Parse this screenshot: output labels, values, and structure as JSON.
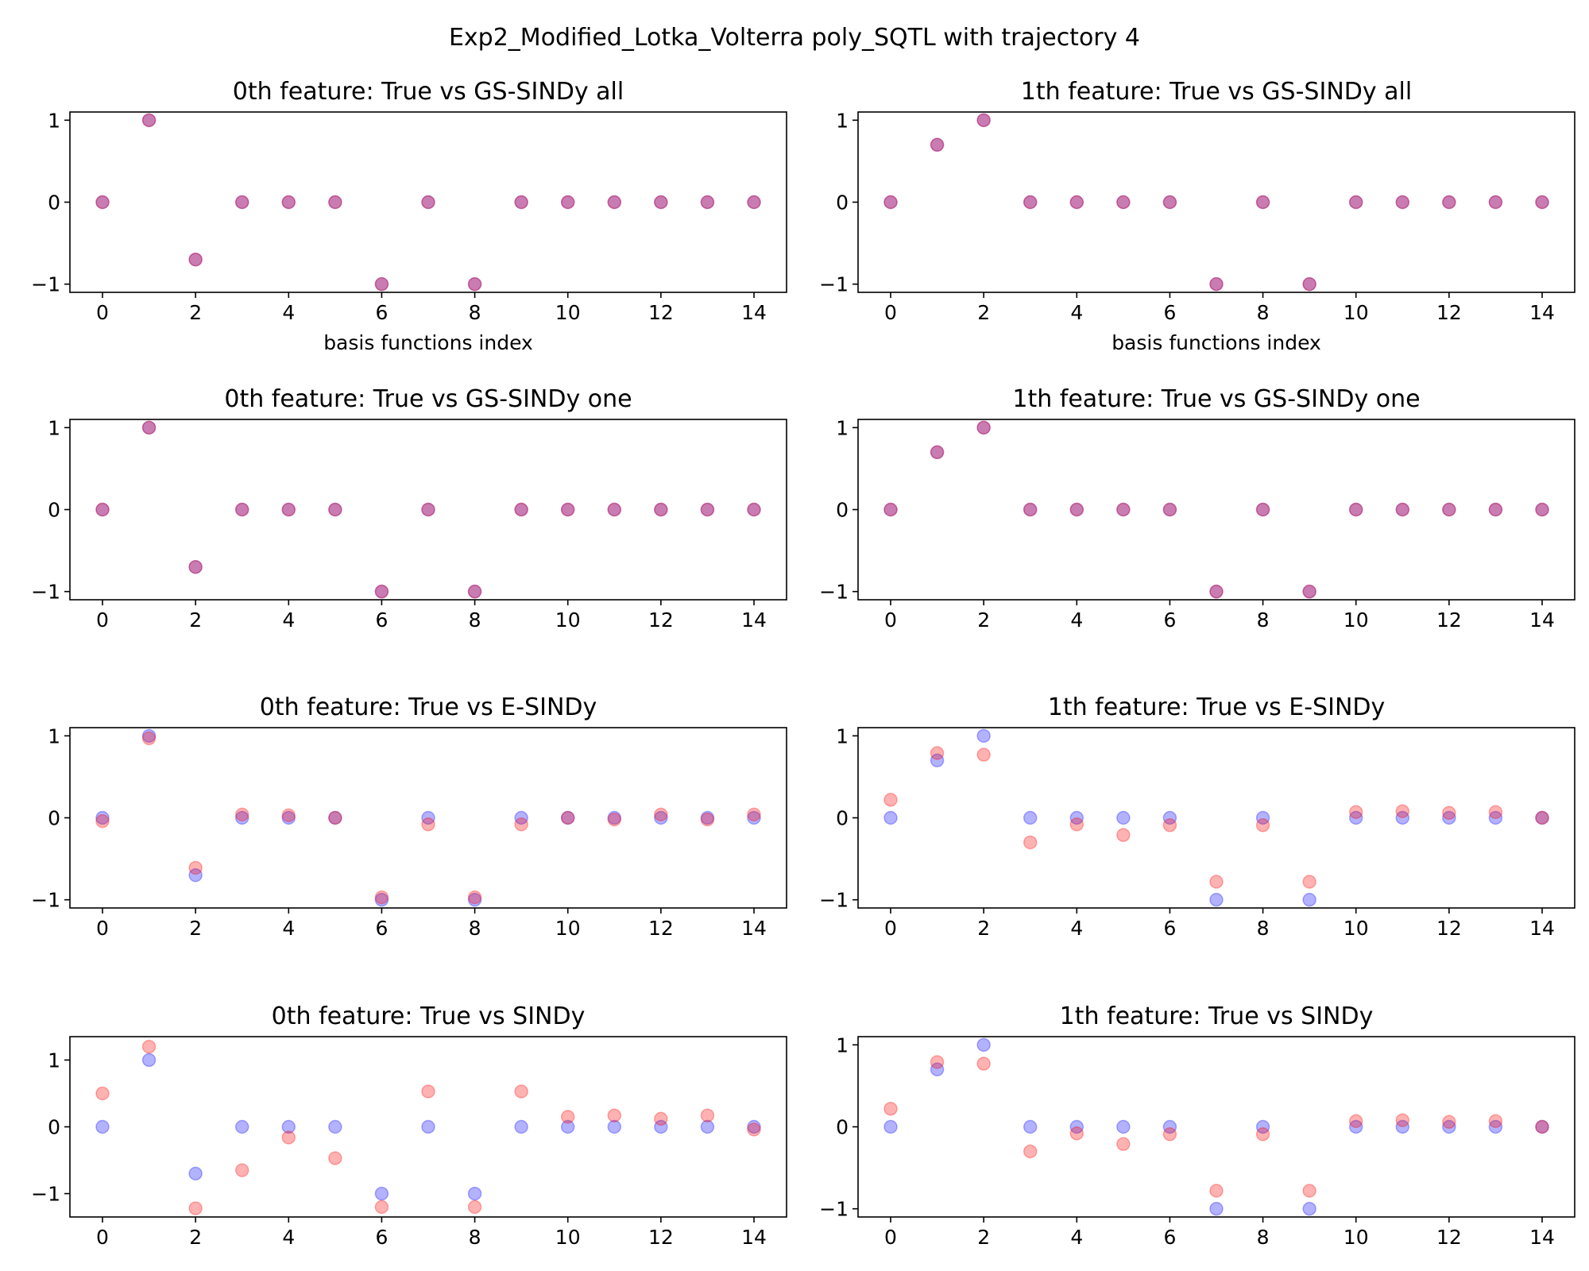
{
  "figure": {
    "suptitle": "Exp2_Modified_Lotka_Volterra poly_SQTL with trajectory 4",
    "true_color": "#0000ff",
    "est_color": "#ff0000",
    "marker_alpha": 0.3
  },
  "chart_data": [
    {
      "type": "scatter",
      "title": "0th feature: True vs GS-SINDy all",
      "xlabel": "basis functions index",
      "ylabel": "",
      "xticks": [
        0,
        2,
        4,
        6,
        8,
        10,
        12,
        14
      ],
      "yticks": [
        -1,
        0,
        1
      ],
      "xlim": [
        -0.7,
        14.7
      ],
      "ylim": [
        -1.1,
        1.1
      ],
      "series": [
        {
          "color": "#0000ff",
          "x": [
            0,
            1,
            2,
            3,
            4,
            5,
            6,
            7,
            8,
            9,
            10,
            11,
            12,
            13,
            14
          ],
          "y": [
            0,
            1,
            -0.7,
            0,
            0,
            0,
            -1,
            0,
            -1,
            0,
            0,
            0,
            0,
            0,
            0
          ]
        },
        {
          "color": "#ff0000",
          "x": [
            0,
            1,
            2,
            3,
            4,
            5,
            6,
            7,
            8,
            9,
            10,
            11,
            12,
            13,
            14
          ],
          "y": [
            0,
            1,
            -0.7,
            0,
            0,
            0,
            -1,
            0,
            -1,
            0,
            0,
            0,
            0,
            0,
            0
          ]
        }
      ]
    },
    {
      "type": "scatter",
      "title": "1th feature: True vs GS-SINDy all",
      "xlabel": "basis functions index",
      "ylabel": "",
      "xticks": [
        0,
        2,
        4,
        6,
        8,
        10,
        12,
        14
      ],
      "yticks": [
        -1,
        0,
        1
      ],
      "xlim": [
        -0.7,
        14.7
      ],
      "ylim": [
        -1.1,
        1.1
      ],
      "series": [
        {
          "color": "#0000ff",
          "x": [
            0,
            1,
            2,
            3,
            4,
            5,
            6,
            7,
            8,
            9,
            10,
            11,
            12,
            13,
            14
          ],
          "y": [
            0,
            0.7,
            1,
            0,
            0,
            0,
            0,
            -1,
            0,
            -1,
            0,
            0,
            0,
            0,
            0
          ]
        },
        {
          "color": "#ff0000",
          "x": [
            0,
            1,
            2,
            3,
            4,
            5,
            6,
            7,
            8,
            9,
            10,
            11,
            12,
            13,
            14
          ],
          "y": [
            0,
            0.7,
            1,
            0,
            0,
            0,
            0,
            -1,
            0,
            -1,
            0,
            0,
            0,
            0,
            0
          ]
        }
      ]
    },
    {
      "type": "scatter",
      "title": "0th feature: True vs GS-SINDy one",
      "xlabel": "",
      "ylabel": "",
      "xticks": [
        0,
        2,
        4,
        6,
        8,
        10,
        12,
        14
      ],
      "yticks": [
        -1,
        0,
        1
      ],
      "xlim": [
        -0.7,
        14.7
      ],
      "ylim": [
        -1.1,
        1.1
      ],
      "series": [
        {
          "color": "#0000ff",
          "x": [
            0,
            1,
            2,
            3,
            4,
            5,
            6,
            7,
            8,
            9,
            10,
            11,
            12,
            13,
            14
          ],
          "y": [
            0,
            1,
            -0.7,
            0,
            0,
            0,
            -1,
            0,
            -1,
            0,
            0,
            0,
            0,
            0,
            0
          ]
        },
        {
          "color": "#ff0000",
          "x": [
            0,
            1,
            2,
            3,
            4,
            5,
            6,
            7,
            8,
            9,
            10,
            11,
            12,
            13,
            14
          ],
          "y": [
            0,
            1,
            -0.7,
            0,
            0,
            0,
            -1,
            0,
            -1,
            0,
            0,
            0,
            0,
            0,
            0
          ]
        }
      ]
    },
    {
      "type": "scatter",
      "title": "1th feature: True vs GS-SINDy one",
      "xlabel": "",
      "ylabel": "",
      "xticks": [
        0,
        2,
        4,
        6,
        8,
        10,
        12,
        14
      ],
      "yticks": [
        -1,
        0,
        1
      ],
      "xlim": [
        -0.7,
        14.7
      ],
      "ylim": [
        -1.1,
        1.1
      ],
      "series": [
        {
          "color": "#0000ff",
          "x": [
            0,
            1,
            2,
            3,
            4,
            5,
            6,
            7,
            8,
            9,
            10,
            11,
            12,
            13,
            14
          ],
          "y": [
            0,
            0.7,
            1,
            0,
            0,
            0,
            0,
            -1,
            0,
            -1,
            0,
            0,
            0,
            0,
            0
          ]
        },
        {
          "color": "#ff0000",
          "x": [
            0,
            1,
            2,
            3,
            4,
            5,
            6,
            7,
            8,
            9,
            10,
            11,
            12,
            13,
            14
          ],
          "y": [
            0,
            0.7,
            1,
            0,
            0,
            0,
            0,
            -1,
            0,
            -1,
            0,
            0,
            0,
            0,
            0
          ]
        }
      ]
    },
    {
      "type": "scatter",
      "title": "0th feature: True vs E-SINDy",
      "xlabel": "",
      "ylabel": "",
      "xticks": [
        0,
        2,
        4,
        6,
        8,
        10,
        12,
        14
      ],
      "yticks": [
        -1,
        0,
        1
      ],
      "xlim": [
        -0.7,
        14.7
      ],
      "ylim": [
        -1.1,
        1.1
      ],
      "series": [
        {
          "color": "#0000ff",
          "x": [
            0,
            1,
            2,
            3,
            4,
            5,
            6,
            7,
            8,
            9,
            10,
            11,
            12,
            13,
            14
          ],
          "y": [
            0,
            1,
            -0.7,
            0,
            0,
            0,
            -1,
            0,
            -1,
            0,
            0,
            0,
            0,
            0,
            0
          ]
        },
        {
          "color": "#ff0000",
          "x": [
            0,
            1,
            2,
            3,
            4,
            5,
            6,
            7,
            8,
            9,
            10,
            11,
            12,
            13,
            14
          ],
          "y": [
            -0.04,
            0.97,
            -0.61,
            0.04,
            0.03,
            0,
            -0.97,
            -0.08,
            -0.97,
            -0.08,
            0,
            -0.02,
            0.04,
            -0.02,
            0.04
          ]
        }
      ]
    },
    {
      "type": "scatter",
      "title": "1th feature: True vs E-SINDy",
      "xlabel": "",
      "ylabel": "",
      "xticks": [
        0,
        2,
        4,
        6,
        8,
        10,
        12,
        14
      ],
      "yticks": [
        -1,
        0,
        1
      ],
      "xlim": [
        -0.7,
        14.7
      ],
      "ylim": [
        -1.1,
        1.1
      ],
      "series": [
        {
          "color": "#0000ff",
          "x": [
            0,
            1,
            2,
            3,
            4,
            5,
            6,
            7,
            8,
            9,
            10,
            11,
            12,
            13,
            14
          ],
          "y": [
            0,
            0.7,
            1,
            0,
            0,
            0,
            0,
            -1,
            0,
            -1,
            0,
            0,
            0,
            0,
            0
          ]
        },
        {
          "color": "#ff0000",
          "x": [
            0,
            1,
            2,
            3,
            4,
            5,
            6,
            7,
            8,
            9,
            10,
            11,
            12,
            13,
            14
          ],
          "y": [
            0.22,
            0.79,
            0.77,
            -0.3,
            -0.08,
            -0.21,
            -0.09,
            -0.78,
            -0.09,
            -0.78,
            0.07,
            0.08,
            0.06,
            0.07,
            0
          ]
        }
      ]
    },
    {
      "type": "scatter",
      "title": "0th feature: True vs SINDy",
      "xlabel": "",
      "ylabel": "",
      "xticks": [
        0,
        2,
        4,
        6,
        8,
        10,
        12,
        14
      ],
      "yticks": [
        -1,
        0,
        1
      ],
      "xlim": [
        -0.7,
        14.7
      ],
      "ylim": [
        -1.35,
        1.35
      ],
      "series": [
        {
          "color": "#0000ff",
          "x": [
            0,
            1,
            2,
            3,
            4,
            5,
            6,
            7,
            8,
            9,
            10,
            11,
            12,
            13,
            14
          ],
          "y": [
            0,
            1,
            -0.7,
            0,
            0,
            0,
            -1,
            0,
            -1,
            0,
            0,
            0,
            0,
            0,
            0
          ]
        },
        {
          "color": "#ff0000",
          "x": [
            0,
            1,
            2,
            3,
            4,
            5,
            6,
            7,
            8,
            9,
            10,
            11,
            12,
            13,
            14
          ],
          "y": [
            0.5,
            1.2,
            -1.22,
            -0.65,
            -0.16,
            -0.47,
            -1.2,
            0.53,
            -1.2,
            0.53,
            0.15,
            0.17,
            0.12,
            0.17,
            -0.04
          ]
        }
      ]
    },
    {
      "type": "scatter",
      "title": "1th feature: True vs SINDy",
      "xlabel": "",
      "ylabel": "",
      "xticks": [
        0,
        2,
        4,
        6,
        8,
        10,
        12,
        14
      ],
      "yticks": [
        -1,
        0,
        1
      ],
      "xlim": [
        -0.7,
        14.7
      ],
      "ylim": [
        -1.1,
        1.1
      ],
      "series": [
        {
          "color": "#0000ff",
          "x": [
            0,
            1,
            2,
            3,
            4,
            5,
            6,
            7,
            8,
            9,
            10,
            11,
            12,
            13,
            14
          ],
          "y": [
            0,
            0.7,
            1,
            0,
            0,
            0,
            0,
            -1,
            0,
            -1,
            0,
            0,
            0,
            0,
            0
          ]
        },
        {
          "color": "#ff0000",
          "x": [
            0,
            1,
            2,
            3,
            4,
            5,
            6,
            7,
            8,
            9,
            10,
            11,
            12,
            13,
            14
          ],
          "y": [
            0.22,
            0.79,
            0.77,
            -0.3,
            -0.08,
            -0.21,
            -0.09,
            -0.78,
            -0.09,
            -0.78,
            0.07,
            0.08,
            0.06,
            0.07,
            0
          ]
        }
      ]
    }
  ]
}
